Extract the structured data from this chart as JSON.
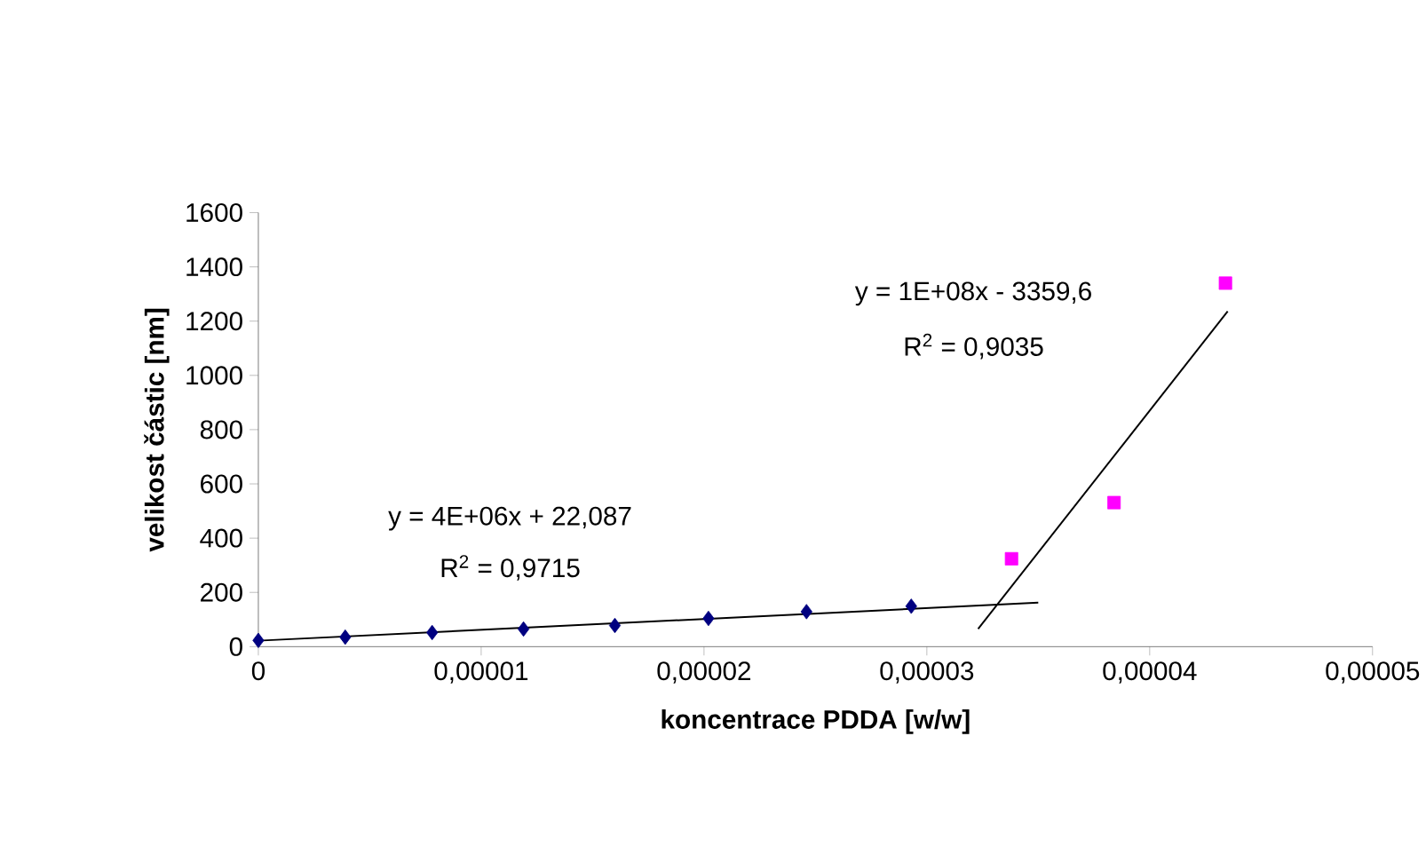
{
  "chart_data": {
    "type": "scatter",
    "xlabel": "koncentrace PDDA [w/w]",
    "ylabel": "velikost částic [nm]",
    "xlim": [
      0,
      5e-05
    ],
    "ylim": [
      0,
      1600
    ],
    "xticks": [
      0,
      {
        "value": 1e-05,
        "label": "0,00001"
      },
      {
        "value": 2e-05,
        "label": "0,00002"
      },
      {
        "value": 3e-05,
        "label": "0,00003"
      },
      {
        "value": 4e-05,
        "label": "0,00004"
      },
      {
        "value": 5e-05,
        "label": "0,00005"
      }
    ],
    "yticks": [
      0,
      200,
      400,
      600,
      800,
      1000,
      1200,
      1400,
      1600
    ],
    "grid": false,
    "series": [
      {
        "color": "#000080",
        "marker": "diamond",
        "x": [
          0,
          3.9e-06,
          7.8e-06,
          1.19e-05,
          1.6e-05,
          2.02e-05,
          2.46e-05,
          2.93e-05
        ],
        "values": [
          23,
          35,
          52,
          65,
          78,
          104,
          129,
          149
        ]
      },
      {
        "color": "#ff00ff",
        "marker": "square",
        "x": [
          3.38e-05,
          3.84e-05,
          4.34e-05
        ],
        "values": [
          324,
          531,
          1340
        ]
      },
      {
        "type": "line",
        "color": "#000000",
        "marker": "none",
        "x": [
          0,
          3.5e-05
        ],
        "values": [
          22,
          162
        ]
      },
      {
        "type": "line",
        "color": "#000000",
        "marker": "none",
        "x": [
          3.23e-05,
          4.35e-05
        ],
        "values": [
          65,
          1236
        ]
      }
    ],
    "annotations": [
      "y = 1E+08x - 3359,6",
      "R$^{2}$ = 0,9035",
      "y = 4E+06x + 22,087",
      "R$^{2}$ = 0,9715"
    ]
  }
}
